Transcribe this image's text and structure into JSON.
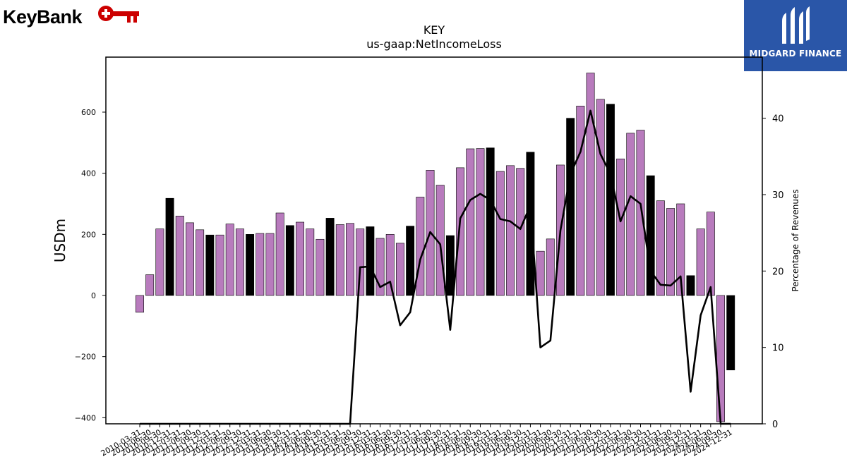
{
  "brand_left": {
    "name": "KeyBank",
    "color": "#cc0000"
  },
  "brand_right": {
    "name": "MIDGARD FINANCE",
    "bg_color": "#2a56a8"
  },
  "chart_data": {
    "type": "bar",
    "title": "KEY",
    "subtitle": "us-gaap:NetIncomeLoss",
    "ylabel": "USDm",
    "y2label": "Percentage of Revenues",
    "ylim": [
      -420,
      780
    ],
    "y2lim": [
      0,
      48
    ],
    "yticks": [
      -400,
      -200,
      0,
      200,
      400,
      600
    ],
    "y2ticks": [
      0,
      10,
      20,
      30,
      40
    ],
    "grid": false,
    "colors": {
      "quarter": "#b87bbd",
      "annual": "#000000",
      "line": "#000000"
    },
    "categories": [
      "2010-03-31",
      "2010-06-30",
      "2010-09-30",
      "2010-12-31",
      "2011-03-31",
      "2011-06-30",
      "2011-09-30",
      "2011-12-31",
      "2012-03-31",
      "2012-06-30",
      "2012-09-30",
      "2012-12-31",
      "2013-03-31",
      "2013-06-30",
      "2013-09-30",
      "2013-12-31",
      "2014-03-31",
      "2014-06-30",
      "2014-09-30",
      "2014-12-31",
      "2015-03-31",
      "2015-06-30",
      "2015-09-30",
      "2015-12-31",
      "2016-03-31",
      "2016-06-30",
      "2016-09-30",
      "2016-12-31",
      "2017-03-31",
      "2017-06-30",
      "2017-09-30",
      "2017-12-31",
      "2018-03-31",
      "2018-06-30",
      "2018-09-30",
      "2018-12-31",
      "2019-03-31",
      "2019-06-30",
      "2019-09-30",
      "2019-12-31",
      "2020-03-31",
      "2020-06-30",
      "2020-09-30",
      "2020-12-31",
      "2021-03-31",
      "2021-06-30",
      "2021-09-30",
      "2021-12-31",
      "2022-03-31",
      "2022-06-30",
      "2022-09-30",
      "2022-12-31",
      "2023-03-31",
      "2023-06-30",
      "2023-09-30",
      "2023-12-31",
      "2024-03-31",
      "2024-06-30",
      "2024-09-30",
      "2024-12-31"
    ],
    "values": [
      -55,
      68,
      218,
      318,
      260,
      238,
      215,
      198,
      198,
      234,
      218,
      200,
      203,
      203,
      270,
      229,
      240,
      218,
      184,
      253,
      232,
      236,
      218,
      225,
      187,
      200,
      171,
      227,
      322,
      410,
      361,
      196,
      418,
      480,
      481,
      483,
      406,
      425,
      416,
      469,
      145,
      185,
      427,
      580,
      620,
      728,
      642,
      626,
      447,
      531,
      541,
      392,
      310,
      285,
      300,
      65,
      218,
      273,
      -413,
      -244
    ],
    "annual": [
      false,
      false,
      false,
      true,
      false,
      false,
      false,
      true,
      false,
      false,
      false,
      true,
      false,
      false,
      false,
      true,
      false,
      false,
      false,
      true,
      false,
      false,
      false,
      true,
      false,
      false,
      false,
      true,
      false,
      false,
      false,
      true,
      false,
      false,
      false,
      true,
      false,
      false,
      false,
      true,
      false,
      false,
      false,
      true,
      false,
      false,
      false,
      true,
      false,
      false,
      false,
      true,
      false,
      false,
      false,
      true,
      false,
      false,
      false,
      true
    ],
    "pct_of_revenues": [
      0,
      0,
      0,
      0,
      0,
      0,
      0,
      0,
      0,
      0,
      0,
      0,
      0,
      0,
      0,
      0,
      0,
      0,
      0,
      0,
      0,
      0,
      20.5,
      20.6,
      17.9,
      18.6,
      12.9,
      14.6,
      21.5,
      25.1,
      23.5,
      12.3,
      26.9,
      29.3,
      30.1,
      29.3,
      26.8,
      26.5,
      25.5,
      28.6,
      10,
      10.9,
      25.3,
      32.7,
      35.6,
      41,
      35.3,
      32.7,
      26.5,
      29.8,
      28.8,
      20,
      18.2,
      18.1,
      19.3,
      4.2,
      14.2,
      17.9,
      0,
      0
    ]
  }
}
